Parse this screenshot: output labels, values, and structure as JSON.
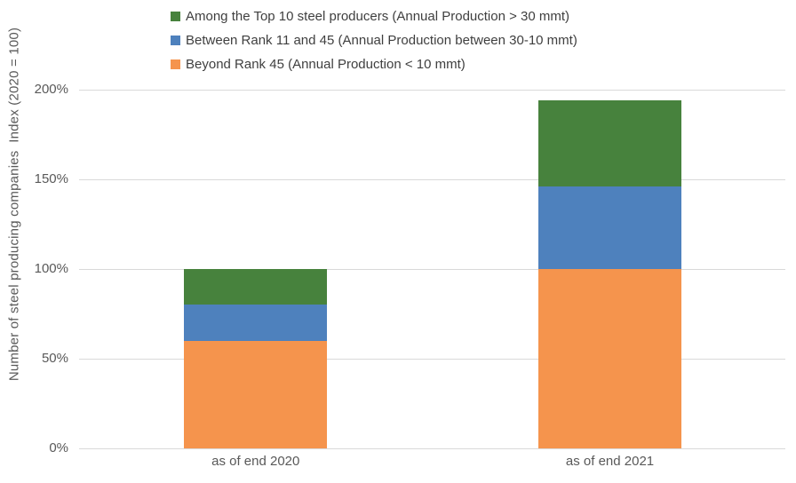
{
  "chart_data": {
    "type": "bar",
    "stacked": true,
    "categories": [
      "as of end 2020",
      "as of end 2021"
    ],
    "series": [
      {
        "key": "top10",
        "name": "Among the Top 10 steel producers (Annual Production > 30 mmt)",
        "color": "#47823D",
        "values": [
          20,
          48
        ]
      },
      {
        "key": "rank11to45",
        "name": "Between Rank 11 and 45 (Annual Production between 30-10 mmt)",
        "color": "#4E81BD",
        "values": [
          20,
          46
        ]
      },
      {
        "key": "beyond45",
        "name": "Beyond Rank 45 (Annual Production < 10 mmt)",
        "color": "#F5944D",
        "values": [
          60,
          100
        ]
      }
    ],
    "stack_bottom_to_top": [
      "beyond45",
      "rank11to45",
      "top10"
    ],
    "title": "",
    "xlabel": "",
    "ylabel": "Number of steel producing companies  Index (2020 = 100)",
    "ylim": [
      0,
      200
    ],
    "yticks": [
      {
        "value": 0,
        "label": "0%"
      },
      {
        "value": 50,
        "label": "50%"
      },
      {
        "value": 100,
        "label": "100%"
      },
      {
        "value": 150,
        "label": "150%"
      },
      {
        "value": 200,
        "label": "200%"
      }
    ],
    "bar_totals": [
      100,
      194
    ],
    "legend_position": "top-left",
    "grid": true
  },
  "style": {
    "gridline_color": "#D9D9D9",
    "axis_text_color": "#595959",
    "legend_text_color": "#3F3F3F",
    "background": "#FFFFFF"
  }
}
